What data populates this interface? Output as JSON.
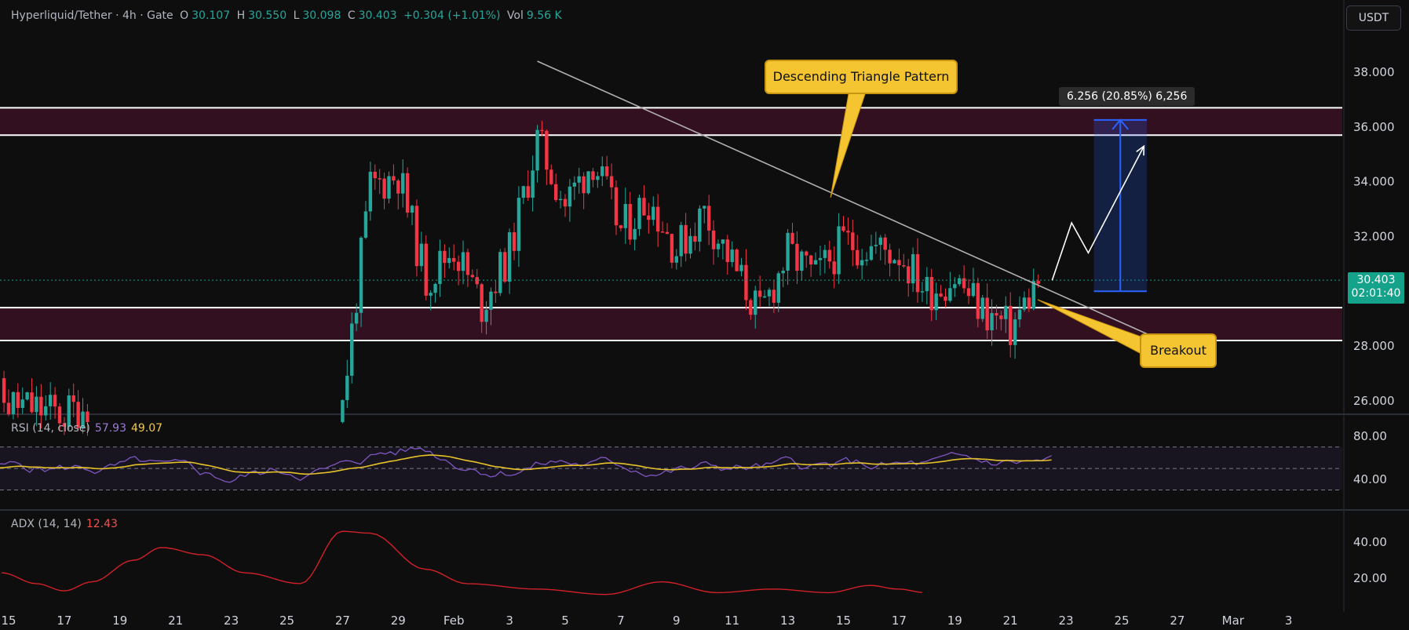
{
  "header": {
    "symbol": "Hyperliquid/Tether · 4h · Gate",
    "o_label": "O",
    "o_value": "30.107",
    "h_label": "H",
    "h_value": "30.550",
    "l_label": "L",
    "l_value": "30.098",
    "c_label": "C",
    "c_value": "30.403",
    "change": "+0.304 (+1.01%)",
    "vol_label": "Vol",
    "vol_value": "9.56 K"
  },
  "currency_button": "USDT",
  "last_price": {
    "price": "30.403",
    "countdown": "02:01:40"
  },
  "colors": {
    "up": "#26a69a",
    "down": "#f23645",
    "zone": "#3a1022",
    "rsi": "#7e57c2",
    "rsi_ma": "#e6c229",
    "adx": "#d0202a",
    "callout": "#f4c531",
    "measure": "#2962ff"
  },
  "annotations": {
    "pattern": "Descending Triangle Pattern",
    "breakout": "Breakout",
    "measure": "6.256 (20.85%) 6,256"
  },
  "rsi_pane": {
    "label": "RSI (14, close)",
    "rsi_value": "57.93",
    "ma_value": "49.07"
  },
  "adx_pane": {
    "label": "ADX (14, 14)",
    "value": "12.43"
  },
  "chart_data": {
    "type": "candlestick",
    "price_axis": {
      "ticks": [
        "38.000",
        "36.000",
        "34.000",
        "32.000",
        "28.000",
        "26.000"
      ],
      "ylim": [
        25.5,
        39.7
      ]
    },
    "x_ticks": [
      "15",
      "17",
      "19",
      "21",
      "23",
      "25",
      "27",
      "29",
      "Feb",
      "3",
      "5",
      "7",
      "9",
      "11",
      "13",
      "15",
      "17",
      "19",
      "21",
      "23",
      "25",
      "27",
      "Mar",
      "3"
    ],
    "support_zone": [
      28.2,
      29.4
    ],
    "resistance_zone": [
      35.7,
      36.7
    ],
    "trendline": {
      "from": {
        "date": "Feb 3",
        "price": 38.4
      },
      "to": {
        "date": "Feb 25",
        "price": 28.4
      }
    },
    "measure": {
      "from": 30.0,
      "to": 36.256,
      "delta": 6.256,
      "percent": 20.85
    },
    "anchors": [
      [
        "Jan 14",
        26.5
      ],
      [
        "Jan 15",
        25.9
      ],
      [
        "Jan 17",
        25.5
      ],
      [
        "Jan 18",
        26.0
      ],
      [
        "Jan 27",
        25.9
      ],
      [
        "Jan 28",
        33.8
      ],
      [
        "Jan 29",
        34.3
      ],
      [
        "Jan 30",
        30.4
      ],
      [
        "Jan 31",
        31.6
      ],
      [
        "Feb 1",
        29.5
      ],
      [
        "Feb 2",
        31.4
      ],
      [
        "Feb 3",
        35.5
      ],
      [
        "Feb 4",
        33.2
      ],
      [
        "Feb 5",
        34.8
      ],
      [
        "Feb 6",
        32.2
      ],
      [
        "Feb 7",
        33.4
      ],
      [
        "Feb 8",
        31.5
      ],
      [
        "Feb 9",
        32.9
      ],
      [
        "Feb 11",
        29.1
      ],
      [
        "Feb 12",
        31.4
      ],
      [
        "Feb 13",
        30.5
      ],
      [
        "Feb 14",
        31.8
      ],
      [
        "Feb 16",
        31.4
      ],
      [
        "Feb 17",
        30.0
      ],
      [
        "Feb 18",
        30.5
      ],
      [
        "Feb 19",
        29.3
      ],
      [
        "Feb 20",
        28.6
      ],
      [
        "Feb 21",
        30.4
      ]
    ],
    "rsi": {
      "axis": [
        "80.00",
        "40.00"
      ],
      "upper_band": 70,
      "mid_band": 50,
      "lower_band": 30,
      "last": 57.93,
      "ma_last": 49.07
    },
    "adx": {
      "axis": [
        "40.00",
        "20.00"
      ],
      "last": 12.43
    },
    "projection_path": [
      [
        "Feb 21.5",
        30.4
      ],
      [
        "Feb 22.2",
        32.5
      ],
      [
        "Feb 22.8",
        31.4
      ],
      [
        "Feb 24.8",
        35.3
      ]
    ]
  }
}
